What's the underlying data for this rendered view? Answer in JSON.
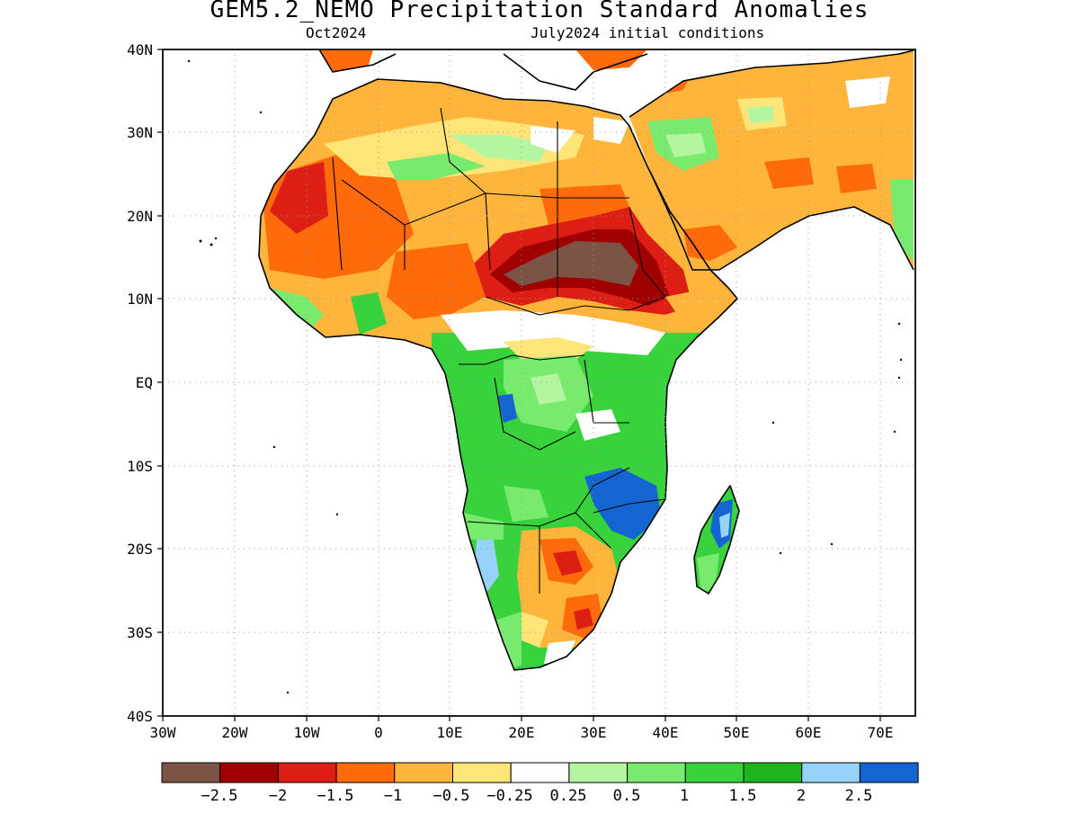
{
  "title": "GEM5.2_NEMO Precipitation Standard Anomalies",
  "subtitle_left": "Oct2024",
  "subtitle_right": "July2024 initial conditions",
  "axes": {
    "lon_labels": [
      "30W",
      "20W",
      "10W",
      "0",
      "10E",
      "20E",
      "30E",
      "40E",
      "50E",
      "60E",
      "70E"
    ],
    "lat_labels": [
      "40N",
      "30N",
      "20N",
      "10N",
      "EQ",
      "10S",
      "20S",
      "30S",
      "40S"
    ]
  },
  "colorbar": {
    "colors": [
      "#7b5446",
      "#a00000",
      "#dc1e14",
      "#ff6a0a",
      "#ffb43c",
      "#ffe478",
      "#ffffff",
      "#b4f5a0",
      "#78eb6e",
      "#37d23c",
      "#1eb41e",
      "#96d2fa",
      "#1464d2"
    ],
    "labels": [
      "−2.5",
      "−2",
      "−1.5",
      "−1",
      "−0.5",
      "−0.25",
      "0.25",
      "0.5",
      "1",
      "1.5",
      "2",
      "2.5"
    ]
  }
}
